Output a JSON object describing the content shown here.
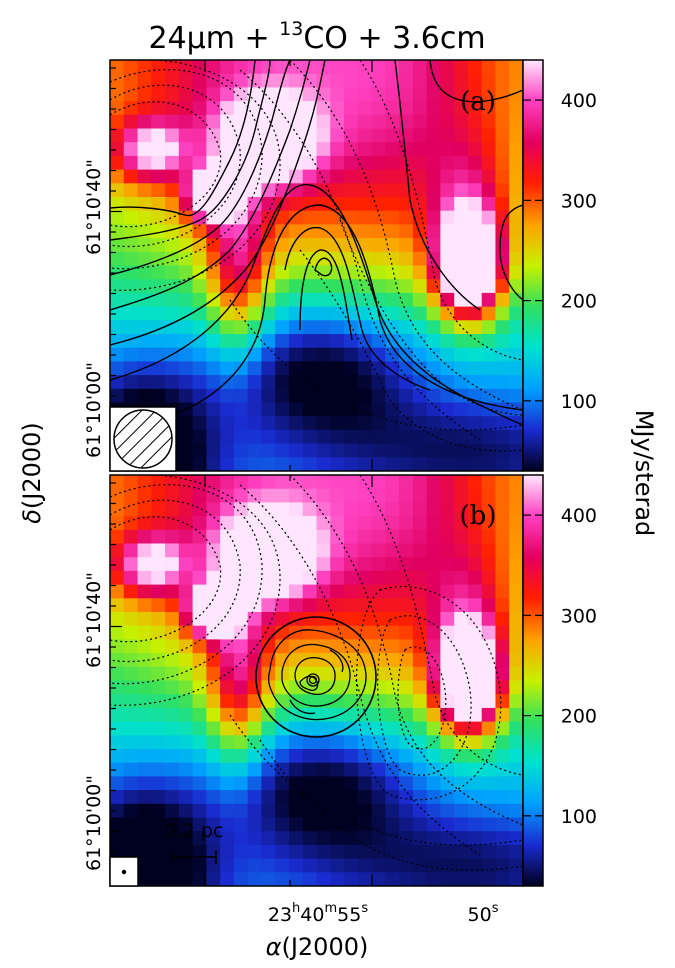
{
  "figure": {
    "title_parts": [
      "24",
      "μ",
      "m + ",
      "13",
      "CO + 3.6cm"
    ],
    "colorbar": {
      "label": "MJy/sterad",
      "ticks": [
        "100",
        "200",
        "300",
        "400"
      ],
      "tick_values": [
        100,
        200,
        300,
        400
      ],
      "range": [
        30,
        440
      ],
      "colormap": [
        "#000020",
        "#1a2bd0",
        "#00a0ff",
        "#00e0d0",
        "#30e060",
        "#c8f000",
        "#ffa000",
        "#ff2000",
        "#e00060",
        "#ff40c0",
        "#ffe6ff"
      ]
    },
    "y_axis": {
      "label_symbol": "δ",
      "label_text": "(J2000)",
      "ticks": [
        "61°10'40\"",
        "61°10'00\""
      ]
    },
    "x_axis": {
      "label_symbol": "α",
      "label_text": "(J2000)",
      "ticks": [
        {
          "main": "23",
          "parts": [
            "h",
            "40",
            "m",
            "55",
            "s"
          ]
        },
        {
          "main": "50",
          "parts": [
            "s"
          ]
        }
      ]
    },
    "panels": [
      {
        "label": "(a)",
        "beam": "large-hatched-circle"
      },
      {
        "label": "(b)",
        "beam": "small-dot",
        "scale_bar": "0.2 pc"
      }
    ]
  }
}
